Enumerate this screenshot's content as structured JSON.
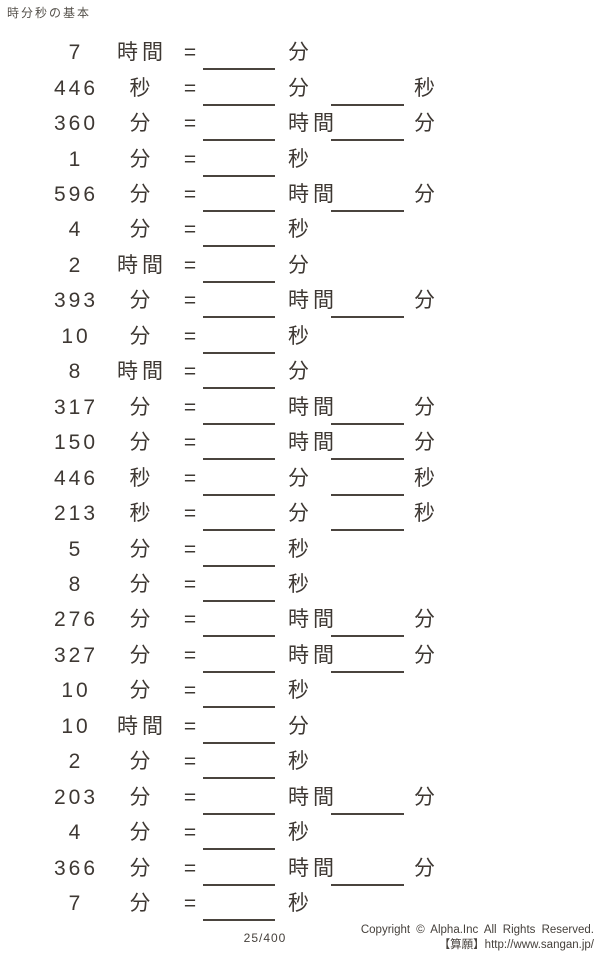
{
  "document": {
    "title": "時分秒の基本",
    "equals": "=",
    "page_number": "25/400",
    "copyright": {
      "line1": "Copyright © Alpha.Inc All Rights Reserved.",
      "line2": "【算願】http://www.sangan.jp/"
    },
    "ink_color": "#3e3833",
    "blank_line_color": "#4a443e"
  },
  "problems": [
    {
      "value": "7",
      "unit": "時間",
      "answers": [
        {
          "unit": "分"
        }
      ]
    },
    {
      "value": "446",
      "unit": "秒",
      "answers": [
        {
          "unit": "分"
        },
        {
          "unit": "秒"
        }
      ]
    },
    {
      "value": "360",
      "unit": "分",
      "answers": [
        {
          "unit": "時間"
        },
        {
          "unit": "分"
        }
      ]
    },
    {
      "value": "1",
      "unit": "分",
      "answers": [
        {
          "unit": "秒"
        }
      ]
    },
    {
      "value": "596",
      "unit": "分",
      "answers": [
        {
          "unit": "時間"
        },
        {
          "unit": "分"
        }
      ]
    },
    {
      "value": "4",
      "unit": "分",
      "answers": [
        {
          "unit": "秒"
        }
      ]
    },
    {
      "value": "2",
      "unit": "時間",
      "answers": [
        {
          "unit": "分"
        }
      ]
    },
    {
      "value": "393",
      "unit": "分",
      "answers": [
        {
          "unit": "時間"
        },
        {
          "unit": "分"
        }
      ]
    },
    {
      "value": "10",
      "unit": "分",
      "answers": [
        {
          "unit": "秒"
        }
      ]
    },
    {
      "value": "8",
      "unit": "時間",
      "answers": [
        {
          "unit": "分"
        }
      ]
    },
    {
      "value": "317",
      "unit": "分",
      "answers": [
        {
          "unit": "時間"
        },
        {
          "unit": "分"
        }
      ]
    },
    {
      "value": "150",
      "unit": "分",
      "answers": [
        {
          "unit": "時間"
        },
        {
          "unit": "分"
        }
      ]
    },
    {
      "value": "446",
      "unit": "秒",
      "answers": [
        {
          "unit": "分"
        },
        {
          "unit": "秒"
        }
      ]
    },
    {
      "value": "213",
      "unit": "秒",
      "answers": [
        {
          "unit": "分"
        },
        {
          "unit": "秒"
        }
      ]
    },
    {
      "value": "5",
      "unit": "分",
      "answers": [
        {
          "unit": "秒"
        }
      ]
    },
    {
      "value": "8",
      "unit": "分",
      "answers": [
        {
          "unit": "秒"
        }
      ]
    },
    {
      "value": "276",
      "unit": "分",
      "answers": [
        {
          "unit": "時間"
        },
        {
          "unit": "分"
        }
      ]
    },
    {
      "value": "327",
      "unit": "分",
      "answers": [
        {
          "unit": "時間"
        },
        {
          "unit": "分"
        }
      ]
    },
    {
      "value": "10",
      "unit": "分",
      "answers": [
        {
          "unit": "秒"
        }
      ]
    },
    {
      "value": "10",
      "unit": "時間",
      "answers": [
        {
          "unit": "分"
        }
      ]
    },
    {
      "value": "2",
      "unit": "分",
      "answers": [
        {
          "unit": "秒"
        }
      ]
    },
    {
      "value": "203",
      "unit": "分",
      "answers": [
        {
          "unit": "時間"
        },
        {
          "unit": "分"
        }
      ]
    },
    {
      "value": "4",
      "unit": "分",
      "answers": [
        {
          "unit": "秒"
        }
      ]
    },
    {
      "value": "366",
      "unit": "分",
      "answers": [
        {
          "unit": "時間"
        },
        {
          "unit": "分"
        }
      ]
    },
    {
      "value": "7",
      "unit": "分",
      "answers": [
        {
          "unit": "秒"
        }
      ]
    }
  ]
}
